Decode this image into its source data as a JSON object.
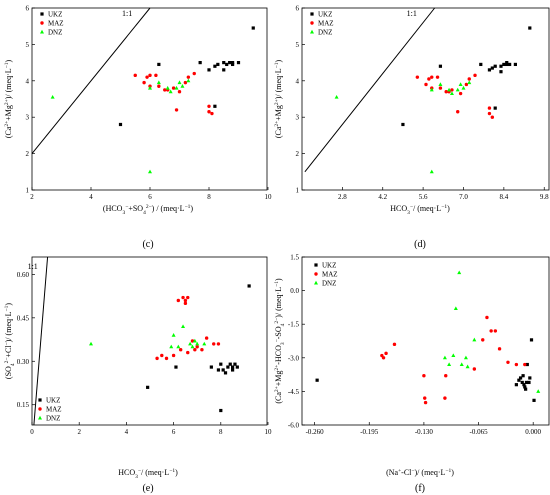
{
  "figure": {
    "panel_labels": [
      "(c)",
      "(d)",
      "(e)",
      "(f)"
    ]
  },
  "chart_data": [
    {
      "panel": "(c)",
      "type": "scatter",
      "xlabel": "(HCO3−+SO42−) / (meq·L−1)",
      "ylabel": "(Ca2++Mg2+)/ (meq·L−1)",
      "xlim": [
        2,
        10
      ],
      "ylim": [
        1,
        6
      ],
      "xticks": [
        2,
        4,
        6,
        8,
        10
      ],
      "yticks": [
        1,
        2,
        3,
        4,
        5,
        6
      ],
      "tick_labels_x": [
        "2",
        "4",
        "6",
        "8",
        "10"
      ],
      "tick_labels_y": [
        "1",
        "2",
        "3",
        "4",
        "5",
        "6"
      ],
      "legend": {
        "position": "top-left",
        "entries": [
          "UKZ",
          "MAZ",
          "DNZ"
        ]
      },
      "reference_line": {
        "label": "1:1",
        "points": [
          [
            2,
            2
          ],
          [
            6,
            6
          ]
        ]
      },
      "series": [
        {
          "name": "UKZ",
          "color": "#000000",
          "marker": "square",
          "points": [
            [
              5.0,
              2.8
            ],
            [
              6.3,
              4.45
            ],
            [
              7.7,
              4.5
            ],
            [
              8.0,
              4.3
            ],
            [
              8.2,
              4.4
            ],
            [
              8.3,
              4.45
            ],
            [
              8.5,
              4.5
            ],
            [
              8.6,
              4.45
            ],
            [
              8.7,
              4.5
            ],
            [
              8.8,
              4.5
            ],
            [
              8.5,
              4.3
            ],
            [
              9.0,
              4.5
            ],
            [
              8.8,
              4.45
            ],
            [
              9.5,
              5.45
            ],
            [
              8.2,
              3.3
            ]
          ]
        },
        {
          "name": "MAZ",
          "color": "#ff0000",
          "marker": "circle",
          "points": [
            [
              5.5,
              4.15
            ],
            [
              5.9,
              4.1
            ],
            [
              6.0,
              4.15
            ],
            [
              6.2,
              4.15
            ],
            [
              5.8,
              3.95
            ],
            [
              6.0,
              3.85
            ],
            [
              6.3,
              3.85
            ],
            [
              6.6,
              3.75
            ],
            [
              6.8,
              3.8
            ],
            [
              7.0,
              3.7
            ],
            [
              7.3,
              4.1
            ],
            [
              7.5,
              4.2
            ],
            [
              6.9,
              3.2
            ],
            [
              8.0,
              3.15
            ],
            [
              8.1,
              3.1
            ],
            [
              8.0,
              3.3
            ],
            [
              6.5,
              3.75
            ],
            [
              7.2,
              3.95
            ]
          ]
        },
        {
          "name": "DNZ",
          "color": "#00ff00",
          "marker": "triangle",
          "points": [
            [
              2.7,
              3.55
            ],
            [
              6.0,
              3.8
            ],
            [
              6.3,
              3.95
            ],
            [
              6.6,
              3.8
            ],
            [
              6.7,
              3.7
            ],
            [
              7.0,
              3.95
            ],
            [
              7.1,
              3.85
            ],
            [
              6.9,
              3.8
            ],
            [
              7.3,
              4.0
            ],
            [
              6.0,
              1.5
            ]
          ]
        }
      ]
    },
    {
      "panel": "(d)",
      "type": "scatter",
      "xlabel": "HCO3−/ (meq·L−1)",
      "ylabel": "(Ca2++Mg2+)/ (meq·L−1)",
      "xlim": [
        1.4,
        10.0
      ],
      "ylim": [
        1,
        6
      ],
      "xticks": [
        2.8,
        4.2,
        5.6,
        7.0,
        8.4,
        9.8
      ],
      "yticks": [
        1,
        2,
        3,
        4,
        5,
        6
      ],
      "tick_labels_x": [
        "2.8",
        "4.2",
        "5.6",
        "7.0",
        "8.4",
        "9.8"
      ],
      "tick_labels_y": [
        "1",
        "2",
        "3",
        "4",
        "5",
        "6"
      ],
      "legend": {
        "position": "top-left",
        "entries": [
          "UKZ",
          "MAZ",
          "DNZ"
        ]
      },
      "reference_line": {
        "label": "1:1",
        "points": [
          [
            1.5,
            1.5
          ],
          [
            6.0,
            6.0
          ]
        ]
      },
      "series": [
        {
          "name": "UKZ",
          "color": "#000000",
          "marker": "square",
          "points": [
            [
              4.9,
              2.8
            ],
            [
              6.2,
              4.4
            ],
            [
              7.6,
              4.45
            ],
            [
              7.9,
              4.3
            ],
            [
              8.0,
              4.35
            ],
            [
              8.1,
              4.4
            ],
            [
              8.3,
              4.4
            ],
            [
              8.4,
              4.45
            ],
            [
              8.5,
              4.5
            ],
            [
              8.6,
              4.45
            ],
            [
              8.3,
              4.25
            ],
            [
              8.8,
              4.45
            ],
            [
              8.5,
              4.45
            ],
            [
              9.3,
              5.45
            ],
            [
              8.1,
              3.25
            ]
          ]
        },
        {
          "name": "MAZ",
          "color": "#ff0000",
          "marker": "circle",
          "points": [
            [
              5.4,
              4.1
            ],
            [
              5.8,
              4.05
            ],
            [
              5.9,
              4.1
            ],
            [
              6.1,
              4.1
            ],
            [
              5.7,
              3.9
            ],
            [
              5.9,
              3.8
            ],
            [
              6.2,
              3.8
            ],
            [
              6.5,
              3.7
            ],
            [
              6.6,
              3.75
            ],
            [
              6.9,
              3.65
            ],
            [
              7.2,
              4.05
            ],
            [
              7.4,
              4.15
            ],
            [
              6.8,
              3.15
            ],
            [
              7.9,
              3.1
            ],
            [
              8.0,
              3.0
            ],
            [
              7.9,
              3.25
            ],
            [
              6.4,
              3.7
            ],
            [
              7.1,
              3.9
            ]
          ]
        },
        {
          "name": "DNZ",
          "color": "#00ff00",
          "marker": "triangle",
          "points": [
            [
              2.6,
              3.55
            ],
            [
              5.9,
              3.75
            ],
            [
              6.2,
              3.9
            ],
            [
              6.5,
              3.75
            ],
            [
              6.6,
              3.65
            ],
            [
              6.9,
              3.9
            ],
            [
              7.0,
              3.8
            ],
            [
              6.8,
              3.75
            ],
            [
              7.2,
              3.95
            ],
            [
              5.9,
              1.5
            ]
          ]
        }
      ]
    },
    {
      "panel": "(e)",
      "type": "scatter",
      "xlabel": "HCO3−/ (meq·L−1)",
      "ylabel": "(SO42−+Cl−)/ (meq·L−1)",
      "xlim": [
        0,
        10
      ],
      "ylim": [
        0.08,
        0.66
      ],
      "xticks": [
        0,
        2,
        4,
        6,
        8,
        10
      ],
      "yticks": [
        0.15,
        0.3,
        0.45,
        0.6
      ],
      "tick_labels_x": [
        "0",
        "2",
        "4",
        "6",
        "8",
        "10"
      ],
      "tick_labels_y": [
        "0.15",
        "0.30",
        "0.45",
        "0.60"
      ],
      "legend": {
        "position": "bottom-left",
        "entries": [
          "UKZ",
          "MAZ",
          "DNZ"
        ]
      },
      "reference_line": {
        "label": "1:1",
        "points": [
          [
            0.08,
            0.08
          ],
          [
            0.66,
            0.66
          ]
        ]
      },
      "series": [
        {
          "name": "UKZ",
          "color": "#000000",
          "marker": "square",
          "points": [
            [
              4.9,
              0.21
            ],
            [
              6.1,
              0.28
            ],
            [
              7.6,
              0.28
            ],
            [
              7.9,
              0.27
            ],
            [
              8.0,
              0.29
            ],
            [
              8.1,
              0.27
            ],
            [
              8.2,
              0.26
            ],
            [
              8.3,
              0.28
            ],
            [
              8.4,
              0.29
            ],
            [
              8.5,
              0.28
            ],
            [
              8.6,
              0.29
            ],
            [
              8.7,
              0.28
            ],
            [
              8.5,
              0.27
            ],
            [
              9.2,
              0.56
            ],
            [
              8.0,
              0.13
            ]
          ]
        },
        {
          "name": "MAZ",
          "color": "#ff0000",
          "marker": "circle",
          "points": [
            [
              6.2,
              0.51
            ],
            [
              6.4,
              0.52
            ],
            [
              6.5,
              0.51
            ],
            [
              6.6,
              0.52
            ],
            [
              6.5,
              0.5
            ],
            [
              6.3,
              0.34
            ],
            [
              6.6,
              0.33
            ],
            [
              6.9,
              0.34
            ],
            [
              7.2,
              0.34
            ],
            [
              7.4,
              0.38
            ],
            [
              7.7,
              0.36
            ],
            [
              7.9,
              0.36
            ],
            [
              5.5,
              0.32
            ],
            [
              5.7,
              0.31
            ],
            [
              6.0,
              0.32
            ],
            [
              5.3,
              0.31
            ],
            [
              6.8,
              0.37
            ],
            [
              7.0,
              0.35
            ]
          ]
        },
        {
          "name": "DNZ",
          "color": "#00ff00",
          "marker": "triangle",
          "points": [
            [
              2.5,
              0.36
            ],
            [
              6.0,
              0.39
            ],
            [
              6.2,
              0.35
            ],
            [
              6.4,
              0.42
            ],
            [
              6.7,
              0.36
            ],
            [
              6.8,
              0.35
            ],
            [
              6.9,
              0.37
            ],
            [
              7.0,
              0.36
            ],
            [
              7.3,
              0.36
            ],
            [
              5.9,
              0.35
            ]
          ]
        }
      ]
    },
    {
      "panel": "(f)",
      "type": "scatter",
      "xlabel": "(Na+-Cl−)/ (meq·L−1)",
      "ylabel": "(Ca2++Mg2+-HCO3−-SO42−)/ (meq·L−1)",
      "xlim": [
        -0.275,
        0.02
      ],
      "ylim": [
        -6.0,
        1.5
      ],
      "xticks": [
        -0.26,
        -0.195,
        -0.13,
        -0.065,
        0.0
      ],
      "yticks": [
        -6.0,
        -4.5,
        -3.0,
        -1.5,
        0.0,
        1.5
      ],
      "tick_labels_x": [
        "-0.260",
        "-0.195",
        "-0.130",
        "-0.065",
        "0.000"
      ],
      "tick_labels_y": [
        "-6.0",
        "-4.5",
        "-3.0",
        "-1.5",
        "0.0",
        "1.5"
      ],
      "legend": {
        "position": "top-left",
        "entries": [
          "UKZ",
          "MAZ",
          "DNZ"
        ]
      },
      "series": [
        {
          "name": "UKZ",
          "color": "#000000",
          "marker": "square",
          "points": [
            [
              -0.257,
              -4.0
            ],
            [
              -0.02,
              -4.2
            ],
            [
              -0.017,
              -4.0
            ],
            [
              -0.015,
              -3.9
            ],
            [
              -0.013,
              -4.1
            ],
            [
              -0.012,
              -3.8
            ],
            [
              -0.011,
              -4.2
            ],
            [
              -0.01,
              -4.3
            ],
            [
              -0.009,
              -4.4
            ],
            [
              -0.008,
              -4.1
            ],
            [
              -0.007,
              -3.3
            ],
            [
              -0.005,
              -4.1
            ],
            [
              -0.004,
              -3.9
            ],
            [
              -0.002,
              -2.2
            ],
            [
              0.001,
              -4.9
            ]
          ]
        },
        {
          "name": "MAZ",
          "color": "#ff0000",
          "marker": "circle",
          "points": [
            [
              -0.165,
              -2.4
            ],
            [
              -0.175,
              -2.8
            ],
            [
              -0.18,
              -2.9
            ],
            [
              -0.178,
              -3.0
            ],
            [
              -0.13,
              -3.8
            ],
            [
              -0.129,
              -4.8
            ],
            [
              -0.128,
              -5.0
            ],
            [
              -0.105,
              -4.8
            ],
            [
              -0.104,
              -3.8
            ],
            [
              -0.07,
              -3.5
            ],
            [
              -0.06,
              -2.2
            ],
            [
              -0.055,
              -1.2
            ],
            [
              -0.05,
              -1.8
            ],
            [
              -0.045,
              -1.8
            ],
            [
              -0.04,
              -2.6
            ],
            [
              -0.03,
              -3.2
            ],
            [
              -0.02,
              -3.3
            ],
            [
              -0.01,
              -3.3
            ]
          ]
        },
        {
          "name": "DNZ",
          "color": "#00ff00",
          "marker": "triangle",
          "points": [
            [
              -0.105,
              -3.0
            ],
            [
              -0.1,
              -3.3
            ],
            [
              -0.095,
              -2.9
            ],
            [
              -0.092,
              -0.8
            ],
            [
              -0.088,
              0.8
            ],
            [
              -0.085,
              -3.3
            ],
            [
              -0.08,
              -3.0
            ],
            [
              -0.078,
              -3.4
            ],
            [
              -0.07,
              -2.2
            ],
            [
              0.006,
              -4.5
            ]
          ]
        }
      ]
    }
  ]
}
